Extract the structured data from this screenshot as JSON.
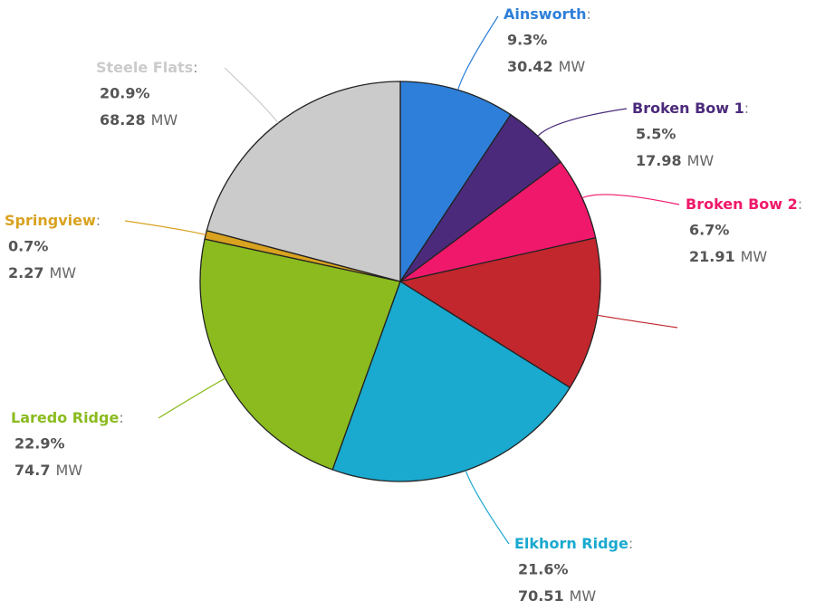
{
  "chart_data": {
    "type": "pie",
    "categories": [
      "Ainsworth",
      "Broken Bow 1",
      "Broken Bow 2",
      null,
      "Elkhorn Ridge",
      "Laredo Ridge",
      "Springview",
      "Steele Flats"
    ],
    "values": [
      9.3,
      5.5,
      6.7,
      12.4,
      21.6,
      22.9,
      0.7,
      20.9
    ],
    "value_labels": [
      "9.3%",
      "5.5%",
      "6.7%",
      null,
      "21.6%",
      "22.9%",
      "0.7%",
      "20.9%"
    ],
    "mw_values": [
      30.42,
      17.98,
      21.91,
      null,
      70.51,
      74.7,
      2.27,
      68.28
    ],
    "mw_unit": "MW",
    "label_separator": ":",
    "colors": [
      "#2e7fd9",
      "#4b2a7b",
      "#f0186a",
      "#c1272d",
      "#1aa9cf",
      "#8bbb1f",
      "#d9a21f",
      "#cbcbcb"
    ]
  }
}
